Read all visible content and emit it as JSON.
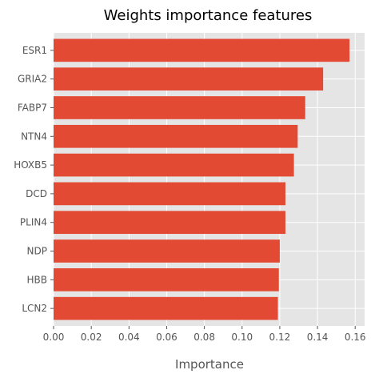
{
  "chart_data": {
    "type": "bar",
    "orientation": "horizontal",
    "title": "Weights importance features",
    "xlabel": "Importance",
    "ylabel": "",
    "categories": [
      "ESR1",
      "GRIA2",
      "FABP7",
      "NTN4",
      "HOXB5",
      "DCD",
      "PLIN4",
      "NDP",
      "HBB",
      "LCN2"
    ],
    "values": [
      0.157,
      0.143,
      0.1335,
      0.1295,
      0.1275,
      0.123,
      0.123,
      0.12,
      0.1195,
      0.119
    ],
    "xlim": [
      0,
      0.165
    ],
    "xticks": [
      "0.00",
      "0.02",
      "0.04",
      "0.06",
      "0.08",
      "0.10",
      "0.12",
      "0.14",
      "0.16"
    ],
    "grid": true,
    "bar_color": "#E24A33",
    "background_color": "#E5E5E5",
    "grid_color": "#FFFFFF"
  }
}
